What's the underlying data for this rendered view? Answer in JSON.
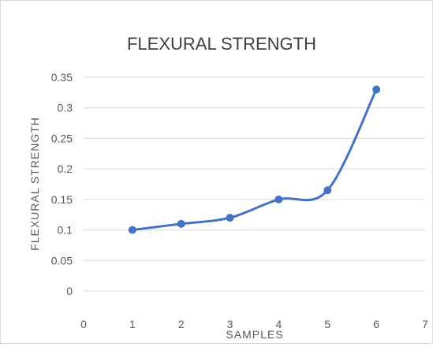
{
  "chart_data": {
    "type": "line",
    "title": "FLEXURAL STRENGTH",
    "xlabel": "SAMPLES",
    "ylabel": "FLEXURAL STRENGTH",
    "x": [
      1,
      2,
      3,
      4,
      5,
      6
    ],
    "series": [
      {
        "values": [
          0.1,
          0.11,
          0.12,
          0.15,
          0.165,
          0.33
        ]
      }
    ],
    "xlim": [
      0,
      7
    ],
    "ylim": [
      0,
      0.35
    ],
    "xticks": [
      "0",
      "1",
      "2",
      "3",
      "4",
      "5",
      "6",
      "7"
    ],
    "yticks": [
      "0",
      "0.05",
      "0.1",
      "0.15",
      "0.2",
      "0.25",
      "0.3",
      "0.35"
    ],
    "grid": "horizontal",
    "legend": "none",
    "colors": {
      "line": "#4472c4",
      "grid": "#d9d9d9",
      "text": "#595959"
    }
  }
}
